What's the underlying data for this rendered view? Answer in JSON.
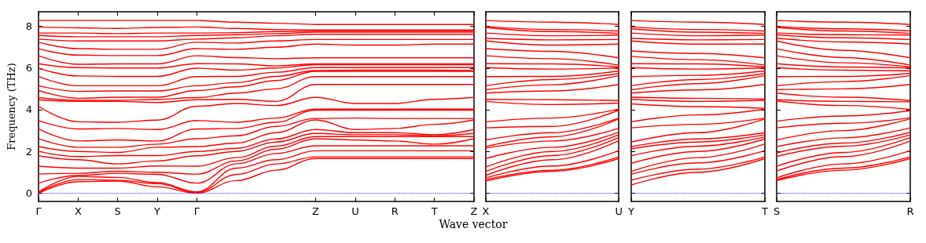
{
  "chart_data": [
    {
      "type": "line",
      "xlabel": "Wave vector",
      "ylabel": "Frequency (THz)",
      "categories": [
        "Γ",
        "X",
        "S",
        "Y",
        "Γ",
        null,
        null,
        "Z",
        "U",
        "R",
        "T",
        "Z"
      ],
      "ylim": [
        -0.4,
        8.7
      ],
      "yticks": [
        0,
        2,
        4,
        6,
        8
      ],
      "ref_lines": [
        {
          "axis": "y",
          "value": 0,
          "color": "#0000ff",
          "line_style": "dotted"
        }
      ],
      "series": [
        {
          "color": "#ff0000",
          "values": [
            0,
            0.55,
            0.58,
            0.3,
            0,
            0.6,
            1.1,
            1.66,
            1.66,
            1.66,
            1.66,
            1.66
          ]
        },
        {
          "color": "#ff0000",
          "values": [
            0.03,
            0.65,
            0.62,
            0.45,
            0.03,
            0.9,
            1.4,
            1.74,
            1.74,
            1.74,
            1.74,
            1.74
          ]
        },
        {
          "color": "#ff0000",
          "values": [
            0.06,
            0.8,
            0.75,
            0.5,
            0.06,
            1.2,
            1.6,
            2.03,
            2.03,
            2.03,
            2.03,
            2.03
          ]
        },
        {
          "color": "#ff0000",
          "values": [
            0.48,
            0.85,
            0.95,
            0.9,
            0.48,
            1.4,
            1.9,
            2.27,
            2.27,
            2.27,
            2.27,
            2.27
          ]
        },
        {
          "color": "#ff0000",
          "values": [
            0.91,
            0.95,
            1.05,
            1.0,
            0.91,
            1.55,
            2.1,
            2.61,
            2.55,
            2.5,
            2.35,
            2.61
          ]
        },
        {
          "color": "#ff0000",
          "values": [
            1.29,
            1.2,
            1.2,
            1.3,
            1.29,
            1.7,
            2.25,
            2.71,
            2.71,
            2.71,
            2.71,
            2.71
          ]
        },
        {
          "color": "#ff0000",
          "values": [
            1.79,
            1.6,
            1.4,
            1.55,
            1.79,
            2.0,
            2.45,
            2.86,
            2.8,
            2.8,
            2.75,
            2.86
          ]
        },
        {
          "color": "#ff0000",
          "values": [
            2.0,
            1.75,
            1.8,
            1.8,
            2.0,
            2.15,
            2.6,
            3.05,
            2.9,
            2.9,
            2.8,
            3.05
          ]
        },
        {
          "color": "#ff0000",
          "values": [
            2.23,
            2.0,
            1.95,
            2.2,
            2.23,
            2.4,
            2.9,
            3.51,
            3.05,
            3.1,
            3.3,
            3.51
          ]
        },
        {
          "color": "#ff0000",
          "values": [
            2.61,
            2.2,
            2.2,
            2.35,
            2.61,
            2.75,
            3.2,
            3.58,
            3.6,
            3.58,
            3.58,
            3.58
          ]
        },
        {
          "color": "#ff0000",
          "values": [
            3.08,
            2.5,
            2.55,
            2.5,
            3.08,
            3.1,
            3.4,
            3.98,
            3.98,
            3.98,
            3.98,
            3.98
          ]
        },
        {
          "color": "#ff0000",
          "values": [
            3.48,
            3.08,
            3.1,
            3.05,
            3.48,
            3.4,
            3.6,
            4.03,
            4.03,
            4.03,
            4.03,
            4.03
          ]
        },
        {
          "color": "#ff0000",
          "values": [
            4.17,
            3.42,
            3.4,
            3.5,
            4.17,
            4.3,
            4.2,
            4.59,
            4.3,
            4.3,
            4.5,
            4.59
          ]
        },
        {
          "color": "#ff0000",
          "values": [
            4.48,
            4.4,
            4.4,
            4.35,
            4.48,
            4.5,
            4.4,
            5.21,
            5.21,
            5.21,
            5.21,
            5.21
          ]
        },
        {
          "color": "#ff0000",
          "values": [
            4.58,
            4.45,
            4.45,
            4.5,
            4.58,
            4.8,
            5.0,
            5.59,
            5.59,
            5.59,
            5.59,
            5.59
          ]
        },
        {
          "color": "#ff0000",
          "values": [
            4.92,
            4.55,
            4.6,
            4.6,
            4.92,
            5.1,
            5.4,
            5.84,
            5.84,
            5.84,
            5.84,
            5.84
          ]
        },
        {
          "color": "#ff0000",
          "values": [
            5.15,
            4.88,
            4.9,
            4.9,
            5.15,
            5.3,
            5.6,
            5.88,
            5.9,
            5.9,
            5.9,
            5.88
          ]
        },
        {
          "color": "#ff0000",
          "values": [
            5.59,
            5.15,
            5.15,
            5.15,
            5.59,
            5.6,
            5.8,
            6.02,
            6.02,
            6.02,
            6.02,
            6.02
          ]
        },
        {
          "color": "#ff0000",
          "values": [
            5.99,
            5.62,
            5.6,
            5.6,
            5.99,
            5.9,
            6.0,
            6.16,
            6.16,
            6.16,
            6.16,
            6.16
          ]
        },
        {
          "color": "#ff0000",
          "values": [
            6.21,
            6.02,
            6.0,
            6.0,
            6.21,
            6.2,
            6.1,
            6.2,
            6.2,
            6.2,
            6.2,
            6.2
          ]
        },
        {
          "color": "#ff0000",
          "values": [
            6.59,
            6.18,
            6.2,
            6.2,
            6.59,
            6.5,
            6.45,
            6.49,
            6.49,
            6.49,
            6.49,
            6.49
          ]
        },
        {
          "color": "#ff0000",
          "values": [
            6.93,
            6.62,
            6.6,
            6.6,
            6.93,
            6.9,
            7.0,
            7.15,
            7.1,
            7.1,
            7.15,
            7.15
          ]
        },
        {
          "color": "#ff0000",
          "values": [
            7.24,
            6.93,
            6.9,
            6.9,
            7.24,
            7.2,
            7.3,
            7.37,
            7.37,
            7.37,
            7.37,
            7.37
          ]
        },
        {
          "color": "#ff0000",
          "values": [
            7.39,
            7.3,
            7.3,
            7.3,
            7.39,
            7.45,
            7.55,
            7.62,
            7.62,
            7.62,
            7.62,
            7.62
          ]
        },
        {
          "color": "#ff0000",
          "values": [
            7.56,
            7.5,
            7.5,
            7.5,
            7.56,
            7.6,
            7.65,
            7.72,
            7.72,
            7.72,
            7.72,
            7.72
          ]
        },
        {
          "color": "#ff0000",
          "values": [
            7.68,
            7.68,
            7.65,
            7.68,
            7.68,
            7.7,
            7.75,
            7.79,
            7.79,
            7.79,
            7.79,
            7.79
          ]
        },
        {
          "color": "#ff0000",
          "values": [
            7.97,
            7.93,
            7.9,
            7.95,
            7.97,
            7.9,
            7.85,
            7.83,
            7.83,
            7.83,
            7.83,
            7.83
          ]
        },
        {
          "color": "#ff0000",
          "values": [
            8.28,
            8.28,
            8.28,
            8.28,
            8.28,
            8.2,
            8.15,
            8.09,
            8.09,
            8.09,
            8.09,
            8.09
          ]
        }
      ]
    },
    {
      "type": "line",
      "categories": [
        "X",
        null,
        "U"
      ],
      "ylim": [
        -0.4,
        8.7
      ],
      "yticks": [
        0,
        2,
        4,
        6,
        8
      ],
      "tick_labels": "x",
      "ref_lines": [
        {
          "axis": "y",
          "value": 0,
          "color": "#0000ff",
          "line_style": "dotted"
        }
      ],
      "series": [
        {
          "color": "#ff0000",
          "values": [
            0.58,
            1.05,
            1.66
          ]
        },
        {
          "color": "#ff0000",
          "values": [
            0.65,
            1.1,
            1.74
          ]
        },
        {
          "color": "#ff0000",
          "values": [
            0.73,
            1.3,
            2.04
          ]
        },
        {
          "color": "#ff0000",
          "values": [
            0.85,
            1.6,
            2.52
          ]
        },
        {
          "color": "#ff0000",
          "values": [
            1.04,
            1.8,
            2.67
          ]
        },
        {
          "color": "#ff0000",
          "values": [
            1.25,
            2.0,
            2.8
          ]
        },
        {
          "color": "#ff0000",
          "values": [
            1.66,
            2.2,
            2.92
          ]
        },
        {
          "color": "#ff0000",
          "values": [
            2.16,
            2.5,
            3.11
          ]
        },
        {
          "color": "#ff0000",
          "values": [
            2.23,
            2.7,
            3.56
          ]
        },
        {
          "color": "#ff0000",
          "values": [
            2.55,
            2.9,
            3.6
          ]
        },
        {
          "color": "#ff0000",
          "values": [
            3.13,
            3.2,
            3.98
          ]
        },
        {
          "color": "#ff0000",
          "values": [
            3.42,
            3.6,
            4.03
          ]
        },
        {
          "color": "#ff0000",
          "values": [
            4.4,
            4.25,
            4.32
          ]
        },
        {
          "color": "#ff0000",
          "values": [
            4.5,
            4.48,
            4.44
          ]
        },
        {
          "color": "#ff0000",
          "values": [
            4.8,
            4.9,
            5.21
          ]
        },
        {
          "color": "#ff0000",
          "values": [
            4.96,
            5.2,
            5.64
          ]
        },
        {
          "color": "#ff0000",
          "values": [
            5.15,
            5.45,
            5.74
          ]
        },
        {
          "color": "#ff0000",
          "values": [
            5.59,
            5.6,
            5.86
          ]
        },
        {
          "color": "#ff0000",
          "values": [
            6.02,
            5.95,
            6.0
          ]
        },
        {
          "color": "#ff0000",
          "values": [
            6.21,
            6.2,
            6.05
          ]
        },
        {
          "color": "#ff0000",
          "values": [
            6.59,
            6.45,
            6.14
          ]
        },
        {
          "color": "#ff0000",
          "values": [
            6.93,
            6.8,
            6.49
          ]
        },
        {
          "color": "#ff0000",
          "values": [
            7.3,
            7.1,
            7.15
          ]
        },
        {
          "color": "#ff0000",
          "values": [
            7.43,
            7.35,
            7.37
          ]
        },
        {
          "color": "#ff0000",
          "values": [
            7.68,
            7.55,
            7.58
          ]
        },
        {
          "color": "#ff0000",
          "values": [
            7.95,
            7.75,
            7.66
          ]
        },
        {
          "color": "#ff0000",
          "values": [
            7.99,
            7.85,
            7.78
          ]
        },
        {
          "color": "#ff0000",
          "values": [
            8.28,
            8.2,
            8.09
          ]
        }
      ]
    },
    {
      "type": "line",
      "categories": [
        "Y",
        null,
        "T"
      ],
      "ylim": [
        -0.4,
        8.7
      ],
      "yticks": [
        0,
        2,
        4,
        6,
        8
      ],
      "tick_labels": "x",
      "ref_lines": [
        {
          "axis": "y",
          "value": 0,
          "color": "#0000ff",
          "line_style": "dotted"
        }
      ],
      "series": [
        {
          "color": "#ff0000",
          "values": [
            0.39,
            1.0,
            1.66
          ]
        },
        {
          "color": "#ff0000",
          "values": [
            0.62,
            1.15,
            1.74
          ]
        },
        {
          "color": "#ff0000",
          "values": [
            0.9,
            1.45,
            2.04
          ]
        },
        {
          "color": "#ff0000",
          "values": [
            1.04,
            1.7,
            2.36
          ]
        },
        {
          "color": "#ff0000",
          "values": [
            1.43,
            2.0,
            2.6
          ]
        },
        {
          "color": "#ff0000",
          "values": [
            1.79,
            2.25,
            2.7
          ]
        },
        {
          "color": "#ff0000",
          "values": [
            2.13,
            2.45,
            2.8
          ]
        },
        {
          "color": "#ff0000",
          "values": [
            2.23,
            2.6,
            2.9
          ]
        },
        {
          "color": "#ff0000",
          "values": [
            2.45,
            2.9,
            3.56
          ]
        },
        {
          "color": "#ff0000",
          "values": [
            3.13,
            3.3,
            3.6
          ]
        },
        {
          "color": "#ff0000",
          "values": [
            3.42,
            3.75,
            4.03
          ]
        },
        {
          "color": "#ff0000",
          "values": [
            4.28,
            4.15,
            4.07
          ]
        },
        {
          "color": "#ff0000",
          "values": [
            4.5,
            4.4,
            4.45
          ]
        },
        {
          "color": "#ff0000",
          "values": [
            4.6,
            4.55,
            4.51
          ]
        },
        {
          "color": "#ff0000",
          "values": [
            4.8,
            4.95,
            5.21
          ]
        },
        {
          "color": "#ff0000",
          "values": [
            4.96,
            5.25,
            5.64
          ]
        },
        {
          "color": "#ff0000",
          "values": [
            5.15,
            5.45,
            5.74
          ]
        },
        {
          "color": "#ff0000",
          "values": [
            5.59,
            5.65,
            5.86
          ]
        },
        {
          "color": "#ff0000",
          "values": [
            6.02,
            5.95,
            6.0
          ]
        },
        {
          "color": "#ff0000",
          "values": [
            6.21,
            6.2,
            6.05
          ]
        },
        {
          "color": "#ff0000",
          "values": [
            6.56,
            6.4,
            6.14
          ]
        },
        {
          "color": "#ff0000",
          "values": [
            6.82,
            6.7,
            6.49
          ]
        },
        {
          "color": "#ff0000",
          "values": [
            7.3,
            7.15,
            7.15
          ]
        },
        {
          "color": "#ff0000",
          "values": [
            7.43,
            7.35,
            7.37
          ]
        },
        {
          "color": "#ff0000",
          "values": [
            7.68,
            7.55,
            7.58
          ]
        },
        {
          "color": "#ff0000",
          "values": [
            7.88,
            7.72,
            7.66
          ]
        },
        {
          "color": "#ff0000",
          "values": [
            7.97,
            7.85,
            7.78
          ]
        },
        {
          "color": "#ff0000",
          "values": [
            8.28,
            8.2,
            8.09
          ]
        }
      ]
    },
    {
      "type": "line",
      "categories": [
        "S",
        null,
        "R"
      ],
      "ylim": [
        -0.4,
        8.7
      ],
      "yticks": [
        0,
        2,
        4,
        6,
        8
      ],
      "tick_labels": "x",
      "ref_lines": [
        {
          "axis": "y",
          "value": 0,
          "color": "#0000ff",
          "line_style": "dotted"
        }
      ],
      "series": [
        {
          "color": "#ff0000",
          "values": [
            0.6,
            1.1,
            1.66
          ]
        },
        {
          "color": "#ff0000",
          "values": [
            0.65,
            1.2,
            1.74
          ]
        },
        {
          "color": "#ff0000",
          "values": [
            0.73,
            1.4,
            2.04
          ]
        },
        {
          "color": "#ff0000",
          "values": [
            1.06,
            1.75,
            2.5
          ]
        },
        {
          "color": "#ff0000",
          "values": [
            1.29,
            1.95,
            2.67
          ]
        },
        {
          "color": "#ff0000",
          "values": [
            1.76,
            2.25,
            2.79
          ]
        },
        {
          "color": "#ff0000",
          "values": [
            1.93,
            2.4,
            2.92
          ]
        },
        {
          "color": "#ff0000",
          "values": [
            2.23,
            2.65,
            3.13
          ]
        },
        {
          "color": "#ff0000",
          "values": [
            2.55,
            3.0,
            3.57
          ]
        },
        {
          "color": "#ff0000",
          "values": [
            3.13,
            3.35,
            3.62
          ]
        },
        {
          "color": "#ff0000",
          "values": [
            3.45,
            3.7,
            3.95
          ]
        },
        {
          "color": "#ff0000",
          "values": [
            4.42,
            4.2,
            4.01
          ]
        },
        {
          "color": "#ff0000",
          "values": [
            4.48,
            4.4,
            4.38
          ]
        },
        {
          "color": "#ff0000",
          "values": [
            4.8,
            4.6,
            4.44
          ]
        },
        {
          "color": "#ff0000",
          "values": [
            4.96,
            5.0,
            5.21
          ]
        },
        {
          "color": "#ff0000",
          "values": [
            5.15,
            5.35,
            5.64
          ]
        },
        {
          "color": "#ff0000",
          "values": [
            5.59,
            5.6,
            5.74
          ]
        },
        {
          "color": "#ff0000",
          "values": [
            6.02,
            5.9,
            5.86
          ]
        },
        {
          "color": "#ff0000",
          "values": [
            6.21,
            6.05,
            6.0
          ]
        },
        {
          "color": "#ff0000",
          "values": [
            6.59,
            6.25,
            6.05
          ]
        },
        {
          "color": "#ff0000",
          "values": [
            6.93,
            6.5,
            6.14
          ]
        },
        {
          "color": "#ff0000",
          "values": [
            7.3,
            6.85,
            6.49
          ]
        },
        {
          "color": "#ff0000",
          "values": [
            7.43,
            7.25,
            7.15
          ]
        },
        {
          "color": "#ff0000",
          "values": [
            7.6,
            7.45,
            7.37
          ]
        },
        {
          "color": "#ff0000",
          "values": [
            7.68,
            7.6,
            7.58
          ]
        },
        {
          "color": "#ff0000",
          "values": [
            7.95,
            7.78,
            7.66
          ]
        },
        {
          "color": "#ff0000",
          "values": [
            7.99,
            7.88,
            7.78
          ]
        },
        {
          "color": "#ff0000",
          "values": [
            8.28,
            8.2,
            8.09
          ]
        }
      ]
    }
  ]
}
